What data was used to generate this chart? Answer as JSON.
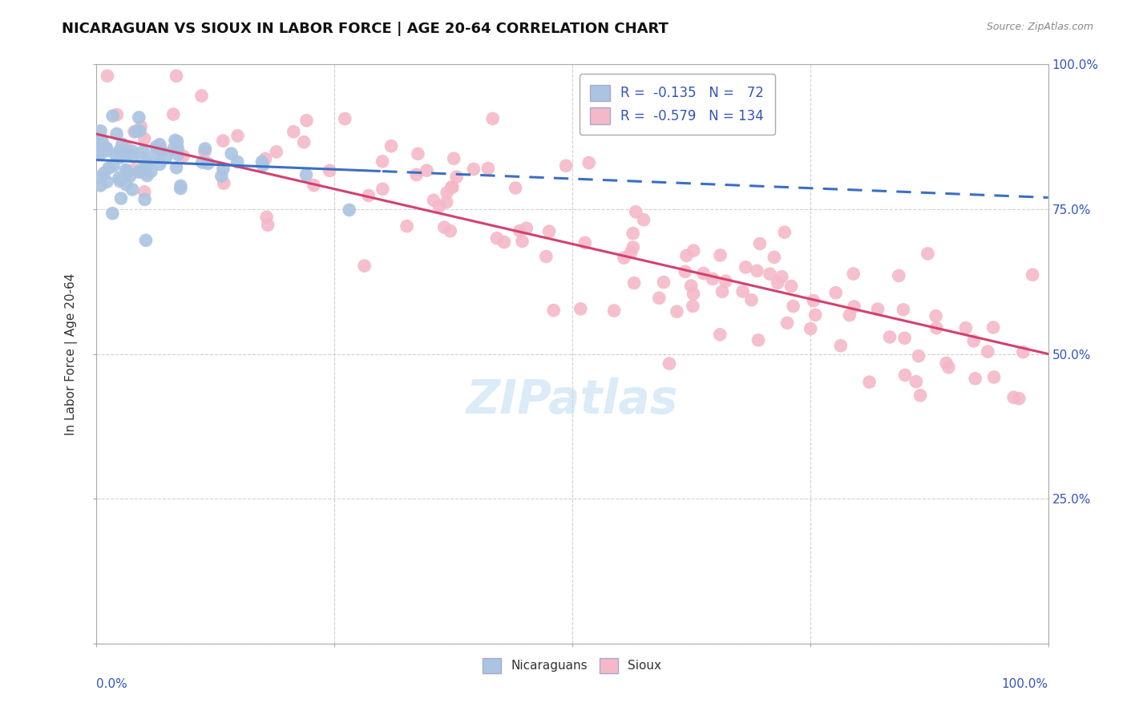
{
  "title": "NICARAGUAN VS SIOUX IN LABOR FORCE | AGE 20-64 CORRELATION CHART",
  "source_text": "Source: ZipAtlas.com",
  "ylabel": "In Labor Force | Age 20-64",
  "xlim": [
    0.0,
    1.0
  ],
  "ylim": [
    0.0,
    1.0
  ],
  "watermark_text": "ZIPatlas",
  "nicaraguan_color": "#aac4e2",
  "sioux_color": "#f4b8c8",
  "nicaraguan_line_color": "#3a6fc4",
  "sioux_line_color": "#d44070",
  "background_color": "#ffffff",
  "grid_color": "#cccccc",
  "title_fontsize": 13,
  "axis_label_fontsize": 11,
  "tick_fontsize": 11,
  "marker_size": 12,
  "R_nicaraguan": -0.135,
  "R_sioux": -0.579,
  "N_nicaraguan": 72,
  "N_sioux": 134,
  "nic_intercept": 0.835,
  "nic_slope": -0.065,
  "sioux_intercept": 0.88,
  "sioux_slope": -0.38
}
